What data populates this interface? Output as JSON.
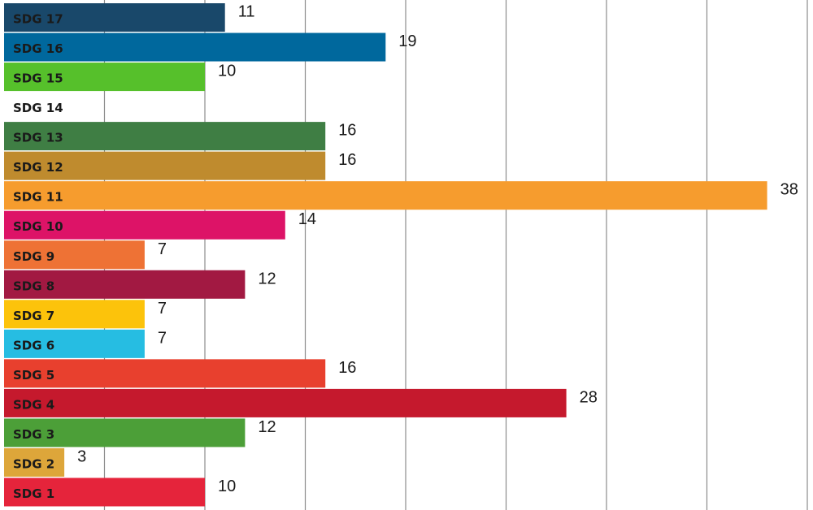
{
  "chart_data": {
    "type": "bar",
    "orientation": "horizontal",
    "categories": [
      "SDG 1",
      "SDG 2",
      "SDG 3",
      "SDG 4",
      "SDG 5",
      "SDG 6",
      "SDG 7",
      "SDG 8",
      "SDG 9",
      "SDG 10",
      "SDG 11",
      "SDG 12",
      "SDG 13",
      "SDG 14",
      "SDG 15",
      "SDG 16",
      "SDG 17"
    ],
    "values": [
      10,
      3,
      12,
      28,
      16,
      7,
      7,
      12,
      7,
      14,
      38,
      16,
      16,
      0,
      10,
      19,
      11
    ],
    "value_labels": [
      "10",
      "3",
      "12",
      "28",
      "16",
      "7",
      "7",
      "12",
      "7",
      "14",
      "38",
      "16",
      "16",
      "",
      "10",
      "19",
      "11"
    ],
    "colors": [
      "#E5243B",
      "#DDA63A",
      "#4C9F38",
      "#C5192D",
      "#E8402E",
      "#26BDE2",
      "#FCC30B",
      "#A21942",
      "#EE7235",
      "#DD1367",
      "#F69C2E",
      "#BF8B2E",
      "#3F7E44",
      "#0A97D9",
      "#56C02B",
      "#00689D",
      "#19486A"
    ],
    "xlim": [
      0,
      40
    ],
    "grid": true,
    "title": "",
    "xlabel": "",
    "ylabel": ""
  }
}
